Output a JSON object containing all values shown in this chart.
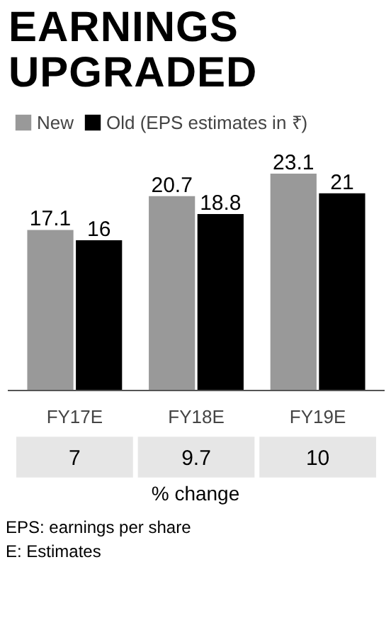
{
  "chart_data": {
    "type": "bar",
    "title": "EARNINGS UPGRADED",
    "categories": [
      "FY17E",
      "FY18E",
      "FY19E"
    ],
    "series": [
      {
        "name": "New",
        "color": "#999999",
        "values": [
          17.1,
          20.7,
          23.1
        ]
      },
      {
        "name": "Old (EPS estimates in ₹)",
        "color": "#000000",
        "values": [
          16,
          18.8,
          21
        ]
      }
    ],
    "data_labels": true,
    "legend": "top left",
    "grid": false,
    "annotations": [
      "7",
      "9.7",
      "10",
      "% change",
      "EPS: earnings per share",
      "E: Estimates"
    ]
  }
}
